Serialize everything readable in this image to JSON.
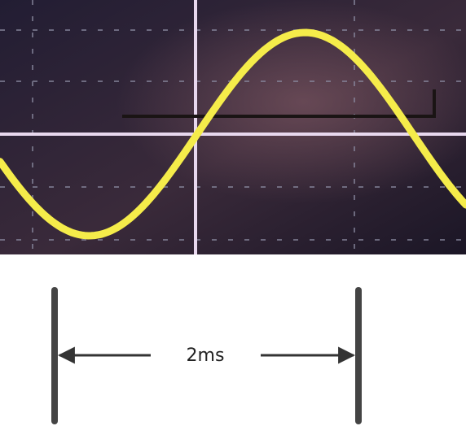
{
  "annotation": {
    "label": "2ms"
  }
}
